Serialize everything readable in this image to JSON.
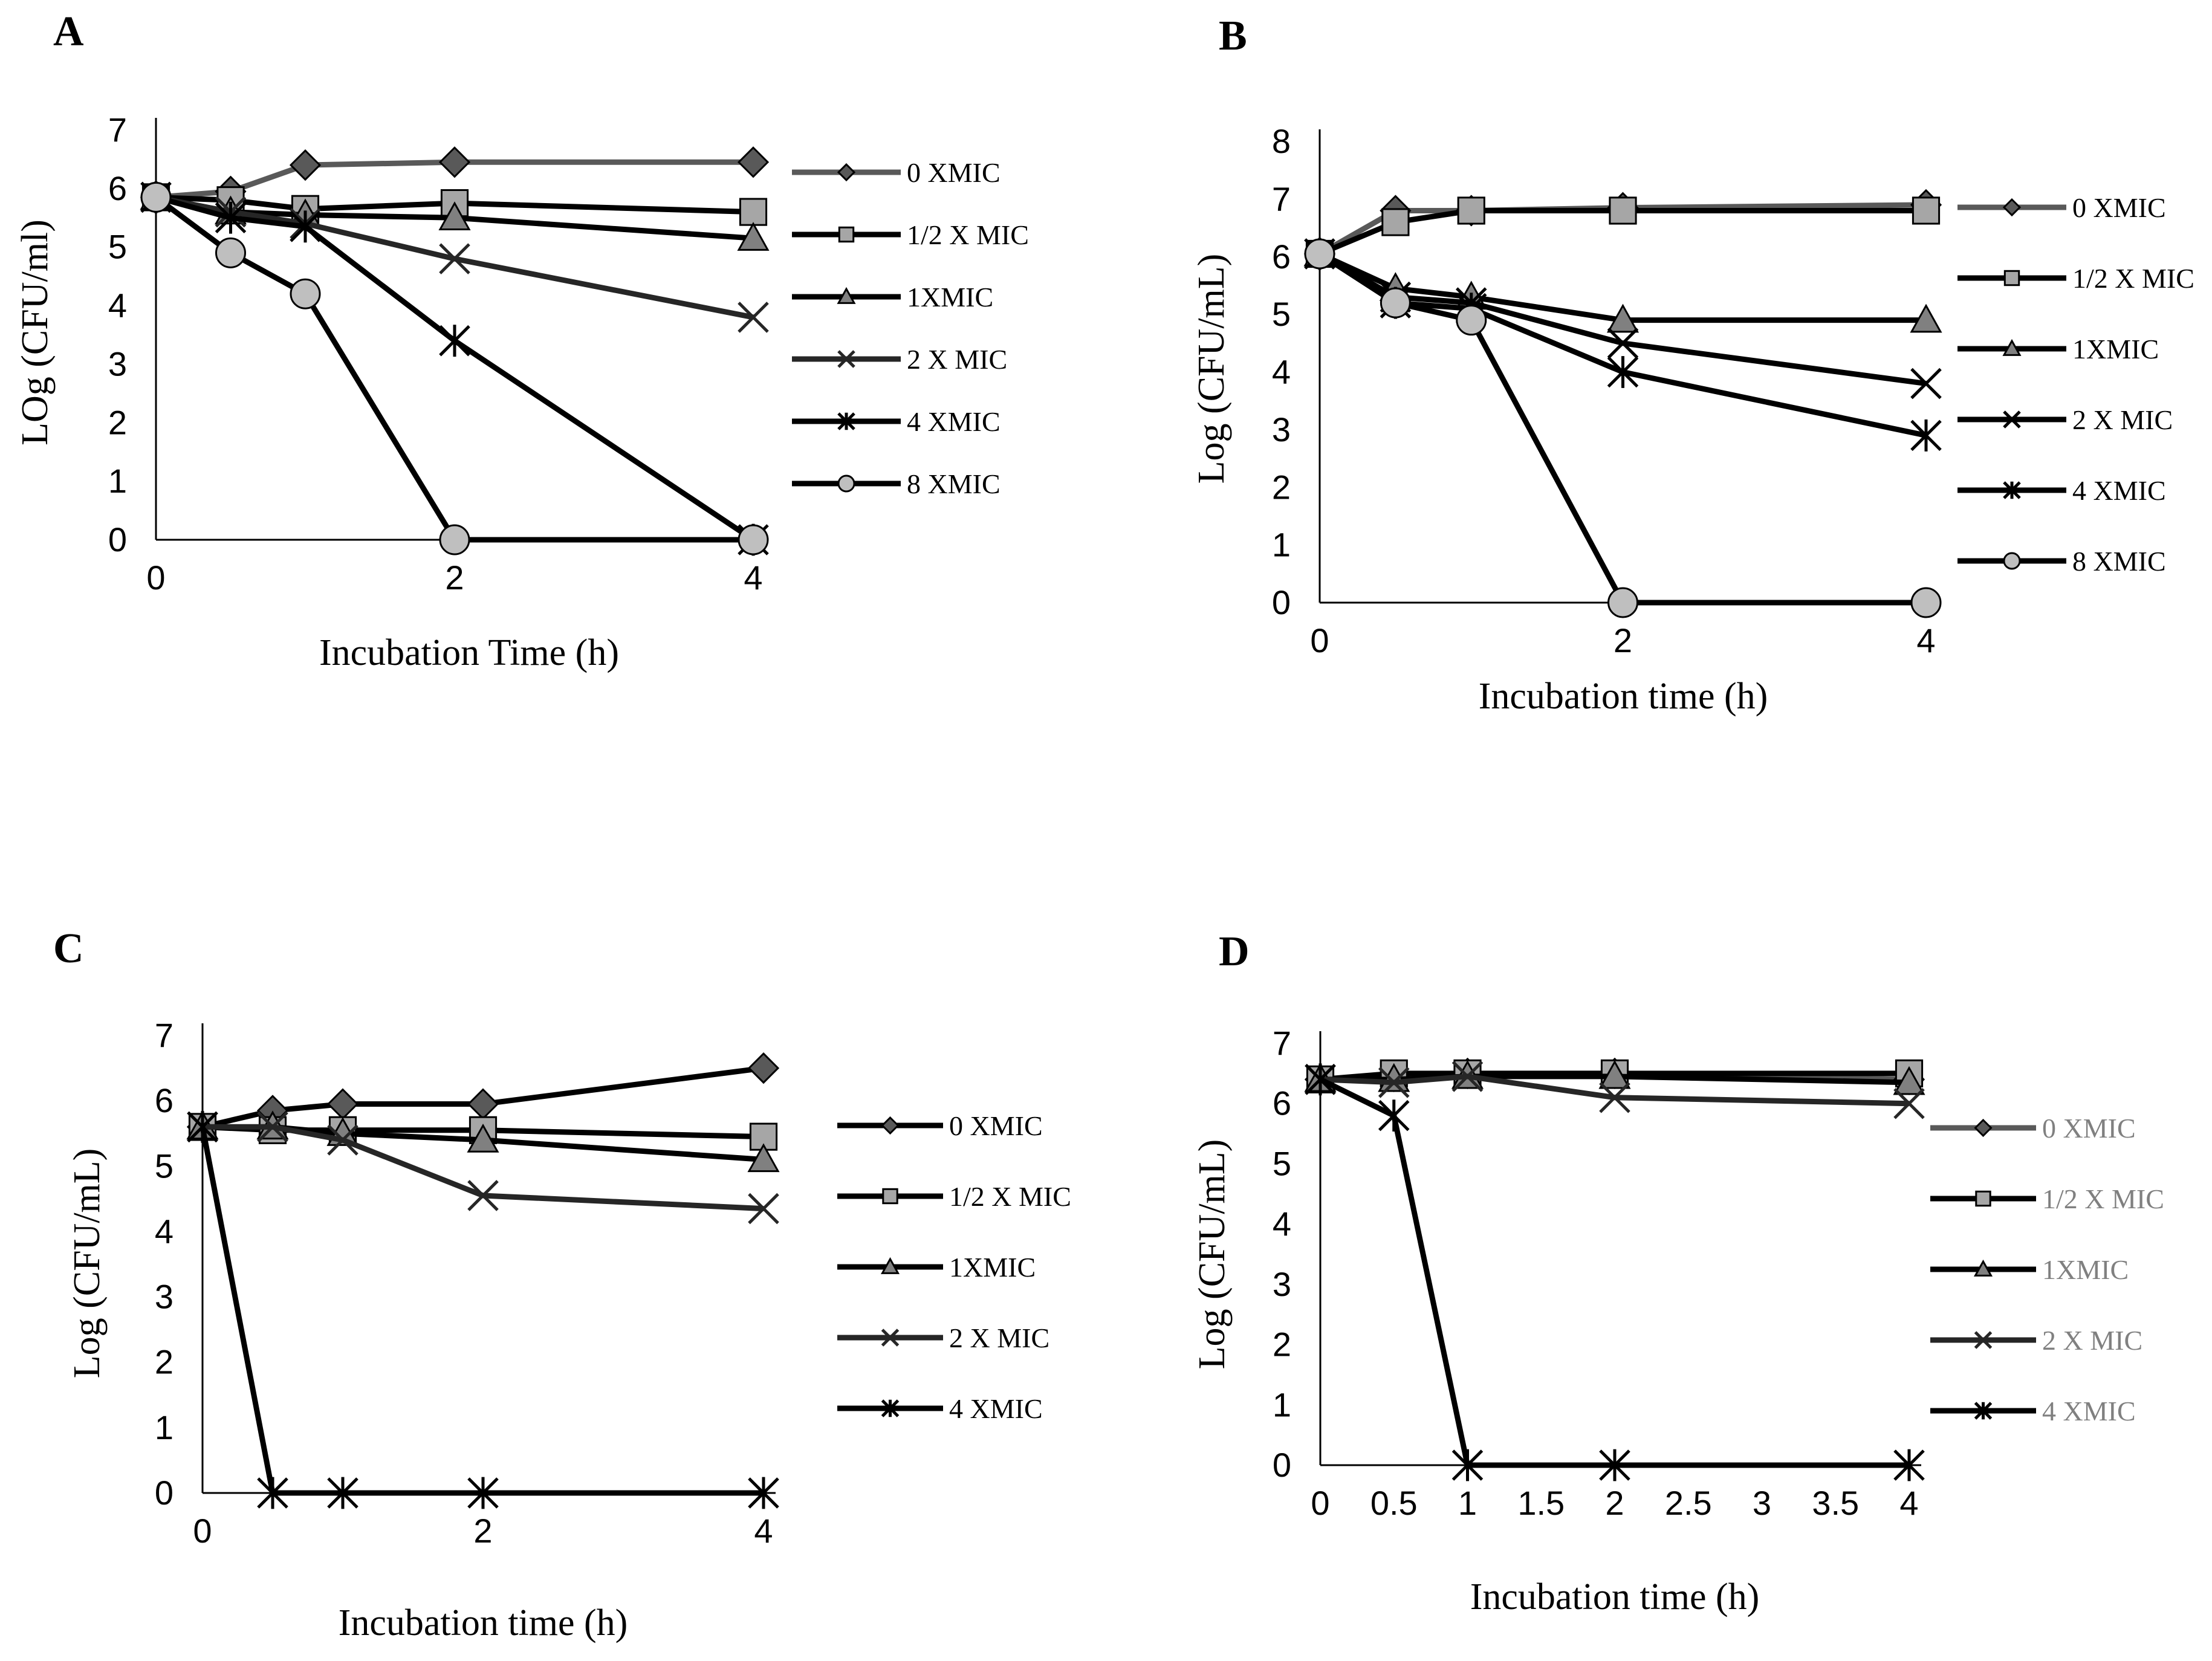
{
  "chart_data": [
    {
      "panel": "A",
      "type": "line",
      "title": "",
      "xlabel": "Incubation Time (h)",
      "ylabel": "LOg (CFU/ml)",
      "x_ticks": [
        0,
        2,
        4
      ],
      "y_ticks": [
        0,
        1,
        2,
        3,
        4,
        5,
        6,
        7
      ],
      "xlim": [
        0,
        4
      ],
      "ylim": [
        0,
        7
      ],
      "legend_position": "right",
      "series": [
        {
          "name": "0 XMIC",
          "marker": "diamond",
          "color": "#595959",
          "legend_text_color": "#000000",
          "x": [
            0,
            0.5,
            1,
            2,
            4
          ],
          "y": [
            5.85,
            5.95,
            6.4,
            6.45,
            6.45
          ]
        },
        {
          "name": "1/2 X MIC",
          "marker": "square",
          "color": "#000000",
          "legend_text_color": "#000000",
          "x": [
            0,
            0.5,
            1,
            2,
            4
          ],
          "y": [
            5.85,
            5.8,
            5.65,
            5.75,
            5.6
          ]
        },
        {
          "name": "1XMIC",
          "marker": "triangle",
          "color": "#000000",
          "legend_text_color": "#000000",
          "x": [
            0,
            0.5,
            1,
            2,
            4
          ],
          "y": [
            5.85,
            5.6,
            5.55,
            5.5,
            5.15
          ]
        },
        {
          "name": "2 X MIC",
          "marker": "x",
          "color": "#262626",
          "legend_text_color": "#000000",
          "x": [
            0,
            0.5,
            1,
            2,
            4
          ],
          "y": [
            5.85,
            5.6,
            5.4,
            4.8,
            3.8
          ]
        },
        {
          "name": "4 XMIC",
          "marker": "star",
          "color": "#000000",
          "legend_text_color": "#000000",
          "x": [
            0,
            0.5,
            1,
            2,
            4
          ],
          "y": [
            5.85,
            5.5,
            5.35,
            3.4,
            0
          ]
        },
        {
          "name": "8 XMIC",
          "marker": "circle",
          "color": "#000000",
          "legend_text_color": "#000000",
          "x": [
            0,
            0.5,
            1,
            2,
            4
          ],
          "y": [
            5.85,
            4.9,
            4.2,
            0,
            0
          ]
        }
      ]
    },
    {
      "panel": "B",
      "type": "line",
      "title": "",
      "xlabel": "Incubation time (h)",
      "ylabel": "Log (CFU/mL)",
      "x_ticks": [
        0,
        2,
        4
      ],
      "y_ticks": [
        0,
        1,
        2,
        3,
        4,
        5,
        6,
        7,
        8
      ],
      "xlim": [
        0,
        4
      ],
      "ylim": [
        0,
        8
      ],
      "legend_position": "right",
      "series": [
        {
          "name": "0 XMIC",
          "marker": "diamond",
          "color": "#595959",
          "legend_text_color": "#000000",
          "x": [
            0,
            0.5,
            1,
            2,
            4
          ],
          "y": [
            6.05,
            6.8,
            6.8,
            6.85,
            6.9
          ]
        },
        {
          "name": "1/2 X MIC",
          "marker": "square",
          "color": "#000000",
          "legend_text_color": "#000000",
          "x": [
            0,
            0.5,
            1,
            2,
            4
          ],
          "y": [
            6.05,
            6.6,
            6.8,
            6.8,
            6.8
          ]
        },
        {
          "name": "1XMIC",
          "marker": "triangle",
          "color": "#000000",
          "legend_text_color": "#000000",
          "x": [
            0,
            0.5,
            1,
            2,
            4
          ],
          "y": [
            6.05,
            5.45,
            5.3,
            4.9,
            4.9
          ]
        },
        {
          "name": "2 X MIC",
          "marker": "x",
          "color": "#000000",
          "legend_text_color": "#000000",
          "x": [
            0,
            0.5,
            1,
            2,
            4
          ],
          "y": [
            6.05,
            5.3,
            5.2,
            4.5,
            3.8
          ]
        },
        {
          "name": "4 XMIC",
          "marker": "star",
          "color": "#000000",
          "legend_text_color": "#000000",
          "x": [
            0,
            0.5,
            1,
            2,
            4
          ],
          "y": [
            6.05,
            5.2,
            5.1,
            4.0,
            2.9
          ]
        },
        {
          "name": "8 XMIC",
          "marker": "circle",
          "color": "#000000",
          "legend_text_color": "#000000",
          "x": [
            0,
            0.5,
            1,
            2,
            4
          ],
          "y": [
            6.05,
            5.2,
            4.9,
            0,
            0
          ]
        }
      ]
    },
    {
      "panel": "C",
      "type": "line",
      "title": "",
      "xlabel": "Incubation time (h)",
      "ylabel": "Log (CFU/mL)",
      "x_ticks": [
        0,
        2,
        4
      ],
      "y_ticks": [
        0,
        1,
        2,
        3,
        4,
        5,
        6,
        7
      ],
      "xlim": [
        0,
        4
      ],
      "ylim": [
        0,
        7
      ],
      "legend_position": "right",
      "series": [
        {
          "name": "0 XMIC",
          "marker": "diamond",
          "color": "#000000",
          "legend_text_color": "#000000",
          "x": [
            0,
            0.5,
            1,
            2,
            4
          ],
          "y": [
            5.6,
            5.85,
            5.95,
            5.95,
            6.5
          ]
        },
        {
          "name": "1/2 X MIC",
          "marker": "square",
          "color": "#000000",
          "legend_text_color": "#000000",
          "x": [
            0,
            0.5,
            1,
            2,
            4
          ],
          "y": [
            5.6,
            5.55,
            5.55,
            5.55,
            5.45
          ]
        },
        {
          "name": "1XMIC",
          "marker": "triangle",
          "color": "#000000",
          "legend_text_color": "#000000",
          "x": [
            0,
            0.5,
            1,
            2,
            4
          ],
          "y": [
            5.6,
            5.6,
            5.5,
            5.4,
            5.1
          ]
        },
        {
          "name": "2 X MIC",
          "marker": "x",
          "color": "#262626",
          "legend_text_color": "#000000",
          "x": [
            0,
            0.5,
            1,
            2,
            4
          ],
          "y": [
            5.6,
            5.6,
            5.4,
            4.55,
            4.35
          ]
        },
        {
          "name": "4 XMIC",
          "marker": "star",
          "color": "#000000",
          "legend_text_color": "#000000",
          "x": [
            0,
            0.5,
            1,
            2,
            4
          ],
          "y": [
            5.6,
            0,
            0,
            0,
            0
          ]
        }
      ]
    },
    {
      "panel": "D",
      "type": "line",
      "title": "",
      "xlabel": "Incubation time (h)",
      "ylabel": "Log (CFU/mL)",
      "x_ticks": [
        0,
        0.5,
        1,
        1.5,
        2,
        2.5,
        3,
        3.5,
        4
      ],
      "y_ticks": [
        0,
        1,
        2,
        3,
        4,
        5,
        6,
        7
      ],
      "xlim": [
        0,
        4
      ],
      "ylim": [
        0,
        7
      ],
      "legend_position": "right",
      "series": [
        {
          "name": "0 XMIC",
          "marker": "diamond",
          "color": "#595959",
          "legend_text_color": "#808080",
          "x": [
            0,
            0.5,
            1,
            2,
            4
          ],
          "y": [
            6.4,
            6.45,
            6.5,
            6.5,
            6.4
          ]
        },
        {
          "name": "1/2 X MIC",
          "marker": "square",
          "color": "#000000",
          "legend_text_color": "#808080",
          "x": [
            0,
            0.5,
            1,
            2,
            4
          ],
          "y": [
            6.4,
            6.5,
            6.5,
            6.5,
            6.5
          ]
        },
        {
          "name": "1XMIC",
          "marker": "triangle",
          "color": "#000000",
          "legend_text_color": "#808080",
          "x": [
            0,
            0.5,
            1,
            2,
            4
          ],
          "y": [
            6.4,
            6.4,
            6.45,
            6.45,
            6.35
          ]
        },
        {
          "name": "2 X MIC",
          "marker": "x",
          "color": "#262626",
          "legend_text_color": "#808080",
          "x": [
            0,
            0.5,
            1,
            2,
            4
          ],
          "y": [
            6.4,
            6.35,
            6.45,
            6.1,
            6.0
          ]
        },
        {
          "name": "4 XMIC",
          "marker": "star",
          "color": "#000000",
          "legend_text_color": "#808080",
          "x": [
            0,
            0.5,
            1,
            2,
            4
          ],
          "y": [
            6.4,
            5.8,
            0,
            0,
            0
          ]
        }
      ]
    }
  ]
}
